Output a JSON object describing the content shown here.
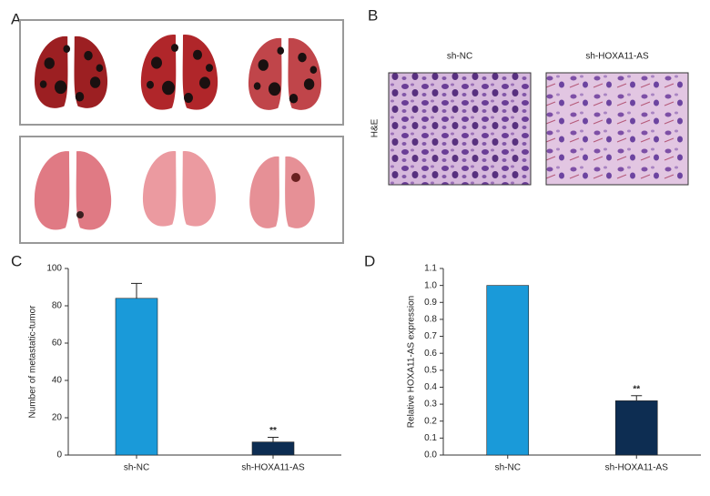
{
  "panels": {
    "a": "A",
    "b": "B",
    "c": "C",
    "d": "D"
  },
  "histology": {
    "columns": [
      "sh-NC",
      "sh-HOXA11-AS"
    ],
    "row_label": "H&E"
  },
  "chart_data": [
    {
      "type": "bar",
      "categories": [
        "sh-NC",
        "sh-HOXA11-AS"
      ],
      "values": [
        84,
        7
      ],
      "errors": [
        8,
        2.5
      ],
      "annotations": [
        null,
        "**"
      ],
      "colors": [
        "#1a9ad9",
        "#0d2d52"
      ],
      "y_label": "Number of metastatic-tumor",
      "ylim": [
        0,
        100
      ],
      "yticks": [
        0,
        20,
        40,
        60,
        80,
        100
      ]
    },
    {
      "type": "bar",
      "categories": [
        "sh-NC",
        "sh-HOXA11-AS"
      ],
      "values": [
        1.0,
        0.32
      ],
      "errors": [
        null,
        0.03
      ],
      "annotations": [
        null,
        "**"
      ],
      "colors": [
        "#1a9ad9",
        "#0d2d52"
      ],
      "y_label": "Relative HOXA11-AS expression",
      "ylim": [
        0,
        1.1
      ],
      "yticks": [
        {
          "value": 0,
          "label": "0.0"
        },
        0.1,
        0.2,
        0.3,
        0.4,
        0.5,
        0.6,
        0.7,
        0.8,
        0.9,
        {
          "value": 1,
          "label": "1.0"
        },
        1.1
      ]
    }
  ]
}
